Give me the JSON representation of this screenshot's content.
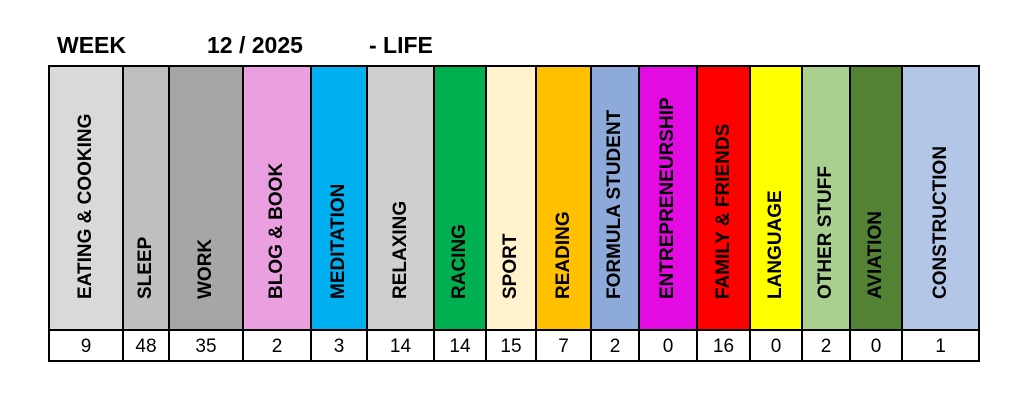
{
  "header": {
    "week_label": "WEEK",
    "week_value": "12 / 2025",
    "suffix": "- LIFE"
  },
  "columns": [
    {
      "label": "EATING & COOKING",
      "value": "9",
      "color": "#d9d9d9"
    },
    {
      "label": "SLEEP",
      "value": "48",
      "color": "#bfbfbf"
    },
    {
      "label": "WORK",
      "value": "35",
      "color": "#a6a6a6"
    },
    {
      "label": "BLOG & BOOK",
      "value": "2",
      "color": "#eaa0e0"
    },
    {
      "label": "MEDITATION",
      "value": "3",
      "color": "#00b0f0"
    },
    {
      "label": "RELAXING",
      "value": "14",
      "color": "#d0cece"
    },
    {
      "label": "RACING",
      "value": "14",
      "color": "#00b050"
    },
    {
      "label": "SPORT",
      "value": "15",
      "color": "#fff2cc"
    },
    {
      "label": "READING",
      "value": "7",
      "color": "#ffc000"
    },
    {
      "label": "FORMULA STUDENT",
      "value": "2",
      "color": "#8eaadb"
    },
    {
      "label": "ENTREPRENEURSHIP",
      "value": "0",
      "color": "#e30ae3"
    },
    {
      "label": "FAMILY & FRIENDS",
      "value": "16",
      "color": "#ff0000"
    },
    {
      "label": "LANGUAGE",
      "value": "0",
      "color": "#ffff00"
    },
    {
      "label": "OTHER STUFF",
      "value": "2",
      "color": "#a9d08e"
    },
    {
      "label": "AVIATION",
      "value": "0",
      "color": "#548235"
    },
    {
      "label": "CONSTRUCTION",
      "value": "1",
      "color": "#b4c6e7"
    }
  ]
}
